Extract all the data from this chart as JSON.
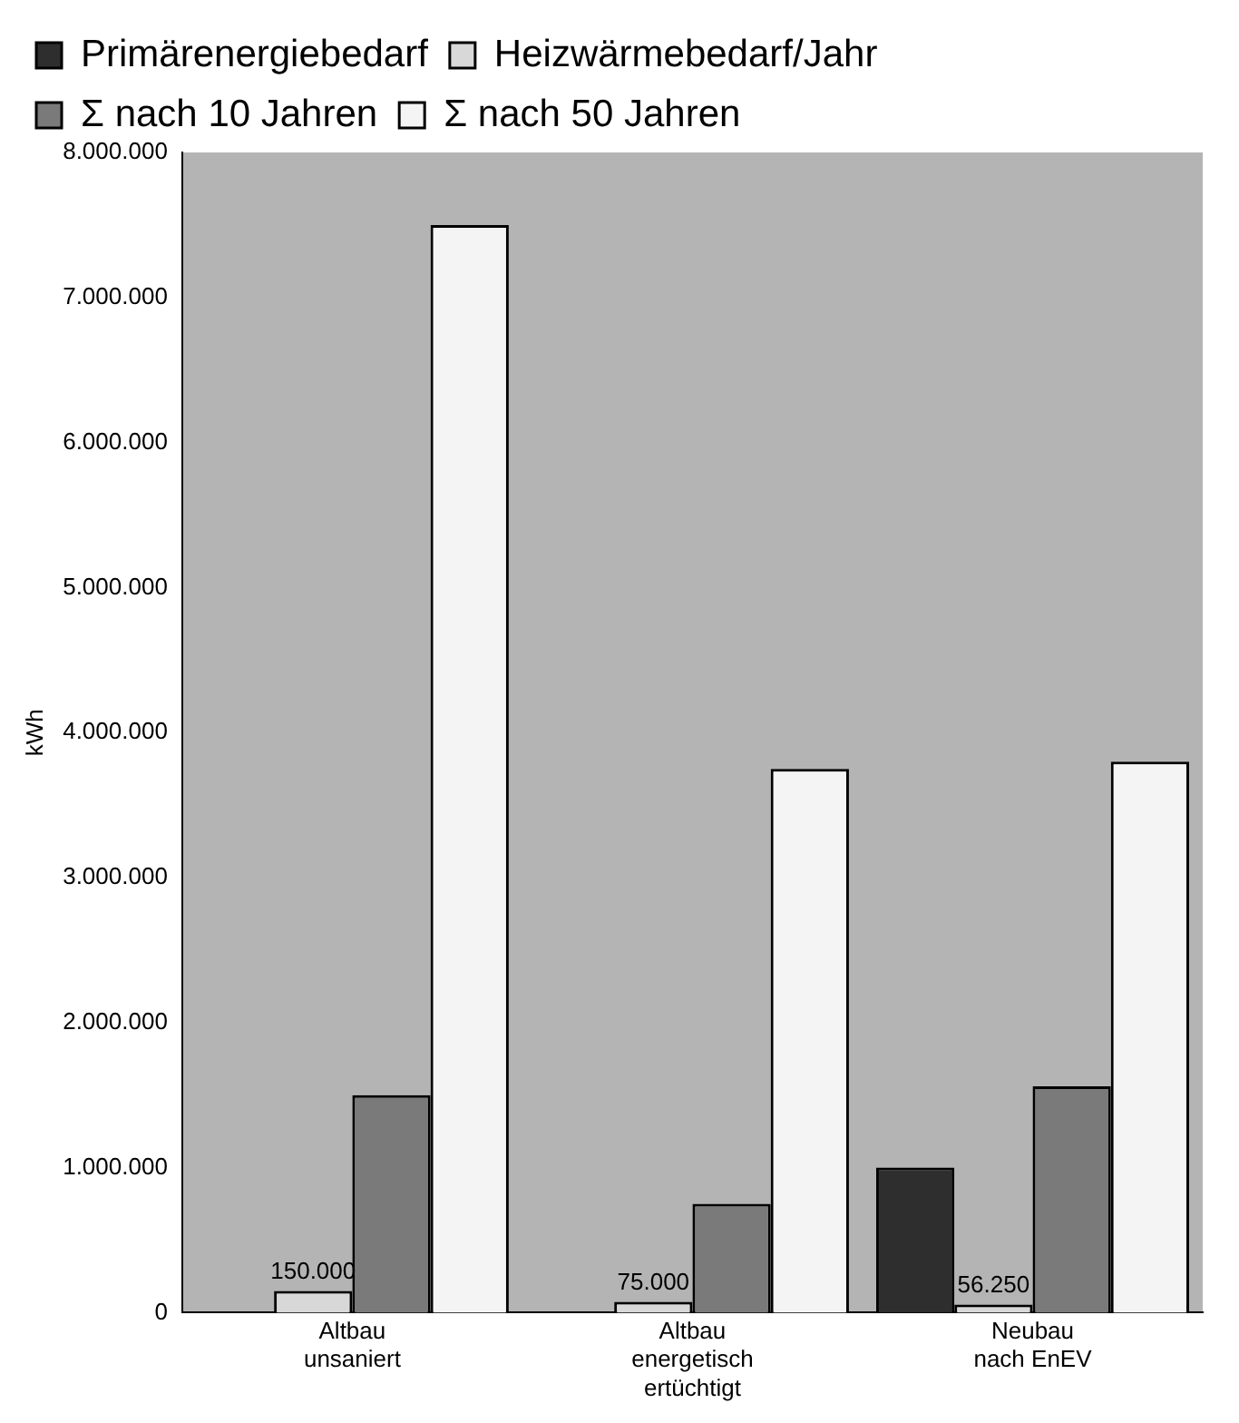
{
  "chart_data": {
    "type": "bar",
    "ylabel": "kWh",
    "categories": [
      "Altbau\nunsaniert",
      "Altbau\nenergetisch\nertüchtigt",
      "Neubau\nnach EnEV"
    ],
    "series": [
      {
        "name": "Primärenergiebedarf",
        "color": "#2e2e2e",
        "values": [
          null,
          null,
          1000000
        ]
      },
      {
        "name": "Heizwärmebedarf/Jahr",
        "color": "#d8d8d8",
        "values": [
          150000,
          75000,
          56250
        ],
        "value_labels": [
          "150.000",
          "75.000",
          "56.250"
        ]
      },
      {
        "name": "Σ nach 10 Jahren",
        "color": "#7a7a7a",
        "values": [
          1500000,
          750000,
          1560000
        ]
      },
      {
        "name": "Σ nach 50 Jahren",
        "color": "#f4f4f4",
        "values": [
          7500000,
          3750000,
          3800000
        ]
      }
    ],
    "ylim": [
      0,
      8000000
    ],
    "yticks": [
      0,
      {
        "value": 1000000,
        "label": "1.000.000"
      },
      {
        "value": 2000000,
        "label": "2.000.000"
      },
      {
        "value": 3000000,
        "label": "3.000.000"
      },
      {
        "value": 4000000,
        "label": "4.000.000"
      },
      {
        "value": 5000000,
        "label": "5.000.000"
      },
      {
        "value": 6000000,
        "label": "6.000.000"
      },
      {
        "value": 7000000,
        "label": "7.000.000"
      },
      {
        "value": 8000000,
        "label": "8.000.000"
      }
    ],
    "grid": false,
    "legend": "top"
  }
}
